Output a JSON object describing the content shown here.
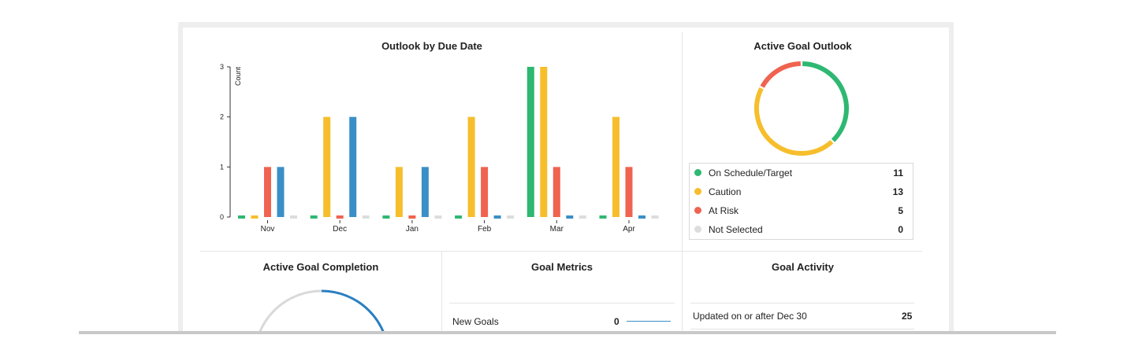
{
  "outlook_chart": {
    "title": "Outlook by Due Date",
    "chart_data": {
      "type": "bar",
      "title": "Outlook by Due Date",
      "ylabel": "Count",
      "xlabel": "",
      "categories": [
        "Nov",
        "Dec",
        "Jan",
        "Feb",
        "Mar",
        "Apr"
      ],
      "yticks": [
        0,
        1,
        2,
        3
      ],
      "ylim": [
        0,
        3
      ],
      "series": [
        {
          "name": "On Schedule/Target",
          "color": "#2eb872",
          "values": [
            0,
            0,
            0,
            0,
            3,
            0
          ]
        },
        {
          "name": "Caution",
          "color": "#f6be2c",
          "values": [
            0,
            2,
            1,
            2,
            3,
            2
          ]
        },
        {
          "name": "At Risk",
          "color": "#ef6350",
          "values": [
            1,
            0,
            0,
            1,
            1,
            1
          ]
        },
        {
          "name": "Not Selected",
          "color": "#3a8fc7",
          "values": [
            1,
            2,
            1,
            0,
            0,
            0
          ]
        },
        {
          "name": "",
          "color": "#dddddd",
          "values": [
            0,
            0,
            0,
            0,
            0,
            0
          ]
        }
      ]
    }
  },
  "active_goal_outlook": {
    "title": "Active Goal Outlook",
    "chart_data": {
      "type": "pie",
      "labels": [
        "On Schedule/Target",
        "Caution",
        "At Risk",
        "Not Selected"
      ],
      "values": [
        11,
        13,
        5,
        0
      ],
      "colors": [
        "#2eb872",
        "#f6be2c",
        "#ef6350",
        "#dddddd"
      ]
    },
    "legend": [
      {
        "label": "On Schedule/Target",
        "value": "11",
        "color": "#2eb872"
      },
      {
        "label": "Caution",
        "value": "13",
        "color": "#f6be2c"
      },
      {
        "label": "At Risk",
        "value": "5",
        "color": "#ef6350"
      },
      {
        "label": "Not Selected",
        "value": "0",
        "color": "#dddddd"
      }
    ]
  },
  "active_goal_completion": {
    "title": "Active Goal Completion"
  },
  "goal_metrics": {
    "title": "Goal Metrics",
    "rows": [
      {
        "label": "New Goals",
        "value": "0"
      }
    ]
  },
  "goal_activity": {
    "title": "Goal Activity",
    "rows": [
      {
        "label": "Updated on or after Dec 30",
        "value": "25"
      }
    ]
  }
}
